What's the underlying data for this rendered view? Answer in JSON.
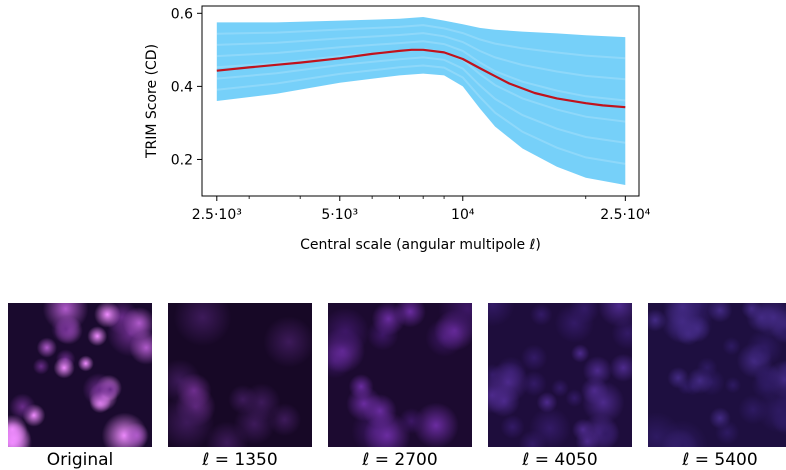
{
  "chart_data": {
    "type": "line",
    "xlabel": "Central scale (angular multipole ℓ)",
    "ylabel": "TRIM Score (CD)",
    "x_scale": "log",
    "xlim": [
      2300,
      27000
    ],
    "ylim": [
      0.1,
      0.62
    ],
    "x_ticks": [
      {
        "value": 2500,
        "label": "2.5·10³"
      },
      {
        "value": 5000,
        "label": "5·10³"
      },
      {
        "value": 10000,
        "label": "10⁴"
      },
      {
        "value": 25000,
        "label": "2.5·10⁴"
      }
    ],
    "y_ticks": [
      {
        "value": 0.2,
        "label": "0.2"
      },
      {
        "value": 0.4,
        "label": "0.4"
      },
      {
        "value": 0.6,
        "label": "0.6"
      }
    ],
    "grid": false,
    "series": [
      {
        "role": "mean",
        "color": "#c0121c",
        "x": [
          2500,
          3000,
          3500,
          4000,
          5000,
          6000,
          7000,
          7500,
          8000,
          9000,
          10000,
          11000,
          12000,
          13000,
          15000,
          17000,
          20000,
          22000,
          25000
        ],
        "y": [
          0.443,
          0.452,
          0.459,
          0.465,
          0.477,
          0.489,
          0.497,
          0.5,
          0.5,
          0.493,
          0.475,
          0.45,
          0.428,
          0.408,
          0.382,
          0.367,
          0.354,
          0.348,
          0.343
        ]
      },
      {
        "role": "individual-samples-band",
        "color": "#5ec8f8",
        "x": [
          2500,
          3500,
          5000,
          7000,
          8000,
          9000,
          10000,
          11000,
          12000,
          14000,
          17000,
          20000,
          25000
        ],
        "upper": [
          0.575,
          0.575,
          0.58,
          0.585,
          0.59,
          0.58,
          0.57,
          0.56,
          0.555,
          0.55,
          0.545,
          0.54,
          0.535
        ],
        "lower": [
          0.36,
          0.38,
          0.41,
          0.43,
          0.435,
          0.43,
          0.4,
          0.34,
          0.29,
          0.23,
          0.18,
          0.15,
          0.13
        ]
      }
    ]
  },
  "thumbnails": [
    {
      "caption": "Original",
      "colors": [
        "#1a0a2e",
        "#6a2c8a",
        "#b05acb",
        "#f08cff"
      ]
    },
    {
      "caption_prefix": "ℓ",
      "caption_value": "= 1350",
      "colors": [
        "#170826",
        "#3d1a5a",
        "#6e2e8e"
      ]
    },
    {
      "caption_prefix": "ℓ",
      "caption_value": "= 2700",
      "colors": [
        "#1c0a30",
        "#3d1766",
        "#6a2ca0"
      ]
    },
    {
      "caption_prefix": "ℓ",
      "caption_value": "= 4050",
      "colors": [
        "#1e0d3c",
        "#331a66",
        "#4d2a8c"
      ]
    },
    {
      "caption_prefix": "ℓ",
      "caption_value": "= 5400",
      "colors": [
        "#1e0f40",
        "#2e1a62",
        "#432a84"
      ]
    }
  ]
}
